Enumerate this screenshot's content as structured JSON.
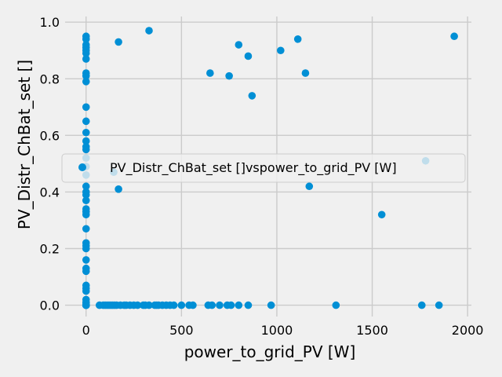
{
  "chart_data": {
    "type": "scatter",
    "xlabel": "power_to_grid_PV [W]",
    "ylabel": "PV_Distr_ChBat_set []",
    "xlim": [
      -110,
      2020
    ],
    "ylim": [
      -0.04,
      1.02
    ],
    "xticks": [
      0,
      500,
      1000,
      1500,
      2000
    ],
    "yticks": [
      0.0,
      0.2,
      0.4,
      0.6,
      0.8,
      1.0
    ],
    "ytick_labels": [
      "0.0",
      "0.2",
      "0.4",
      "0.6",
      "0.8",
      "1.0"
    ],
    "grid": true,
    "legend_position": "center-right",
    "colors": {
      "marker": "#008fd5",
      "grid": "#cbcbcb",
      "background": "#f0f0f0"
    },
    "series": [
      {
        "name": "PV_Distr_ChBat_set []vspower_to_grid_PV [W]",
        "x": [
          0,
          0,
          0,
          0,
          0,
          0,
          0,
          0,
          0,
          0,
          0,
          0,
          0,
          0,
          0,
          0,
          0,
          0,
          0,
          0,
          0,
          0,
          0,
          0,
          0,
          0,
          0,
          0,
          0,
          0,
          0,
          0,
          0,
          0,
          0,
          0,
          0,
          0,
          0,
          0,
          0,
          0,
          0,
          0,
          0,
          70,
          90,
          100,
          110,
          120,
          130,
          140,
          150,
          160,
          180,
          200,
          210,
          230,
          250,
          270,
          300,
          310,
          330,
          360,
          370,
          380,
          400,
          420,
          440,
          460,
          500,
          540,
          560,
          640,
          660,
          700,
          740,
          760,
          800,
          850,
          970,
          1310,
          1760,
          1850,
          170,
          330,
          650,
          750,
          800,
          850,
          870,
          1020,
          1110,
          1150,
          1170,
          1550,
          1780,
          1930,
          145,
          170
        ],
        "y": [
          0.95,
          0.94,
          0.92,
          0.91,
          0.9,
          0.89,
          0.87,
          0.82,
          0.81,
          0.79,
          0.7,
          0.65,
          0.61,
          0.58,
          0.56,
          0.55,
          0.52,
          0.49,
          0.46,
          0.42,
          0.4,
          0.39,
          0.37,
          0.34,
          0.33,
          0.32,
          0.27,
          0.22,
          0.21,
          0.2,
          0.16,
          0.13,
          0.12,
          0.07,
          0.06,
          0.05,
          0.02,
          0.01,
          0.01,
          0.0,
          0.0,
          0.0,
          0.0,
          0.0,
          0.0,
          0,
          0,
          0,
          0,
          0,
          0,
          0,
          0,
          0,
          0,
          0,
          0,
          0,
          0,
          0,
          0,
          0,
          0,
          0,
          0,
          0,
          0,
          0,
          0,
          0,
          0,
          0,
          0,
          0,
          0,
          0,
          0,
          0,
          0,
          0,
          0,
          0,
          0,
          0,
          0.93,
          0.97,
          0.82,
          0.81,
          0.92,
          0.88,
          0.74,
          0.9,
          0.94,
          0.82,
          0.42,
          0.32,
          0.51,
          0.95,
          0.47,
          0.41
        ]
      }
    ]
  }
}
